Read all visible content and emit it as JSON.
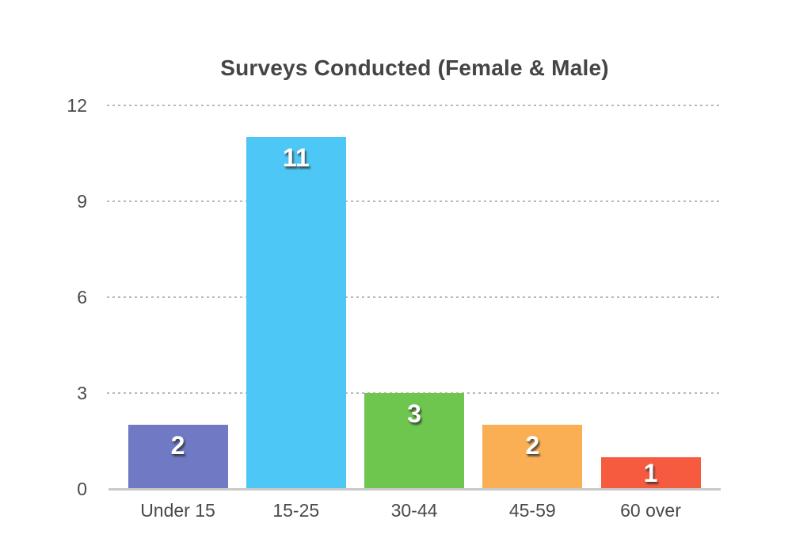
{
  "chart_data": {
    "type": "bar",
    "title": "Surveys Conducted (Female & Male)",
    "categories": [
      "Under 15",
      "15-25",
      "30-44",
      "45-59",
      "60 over"
    ],
    "values": [
      2,
      11,
      3,
      2,
      1
    ],
    "value_labels": [
      "2",
      "11",
      "3",
      "2",
      "1"
    ],
    "bar_colors": [
      "#6F79C4",
      "#4DC8F6",
      "#6FC64F",
      "#FBAF55",
      "#F65B40"
    ],
    "yticks": [
      "0",
      "3",
      "6",
      "9",
      "12"
    ],
    "ytick_values": [
      0,
      3,
      6,
      9,
      12
    ],
    "ylim": [
      0,
      12
    ],
    "xlabel": "",
    "ylabel": "",
    "grid": "horizontal-dotted",
    "legend_position": "none",
    "value_label_color": "#ffffff"
  },
  "colors": {
    "background": "#ffffff",
    "title_text": "#454545",
    "axis_text": "#4a4a4a",
    "gridline": "#b9b9b9",
    "baseline": "#c9c9c9"
  }
}
